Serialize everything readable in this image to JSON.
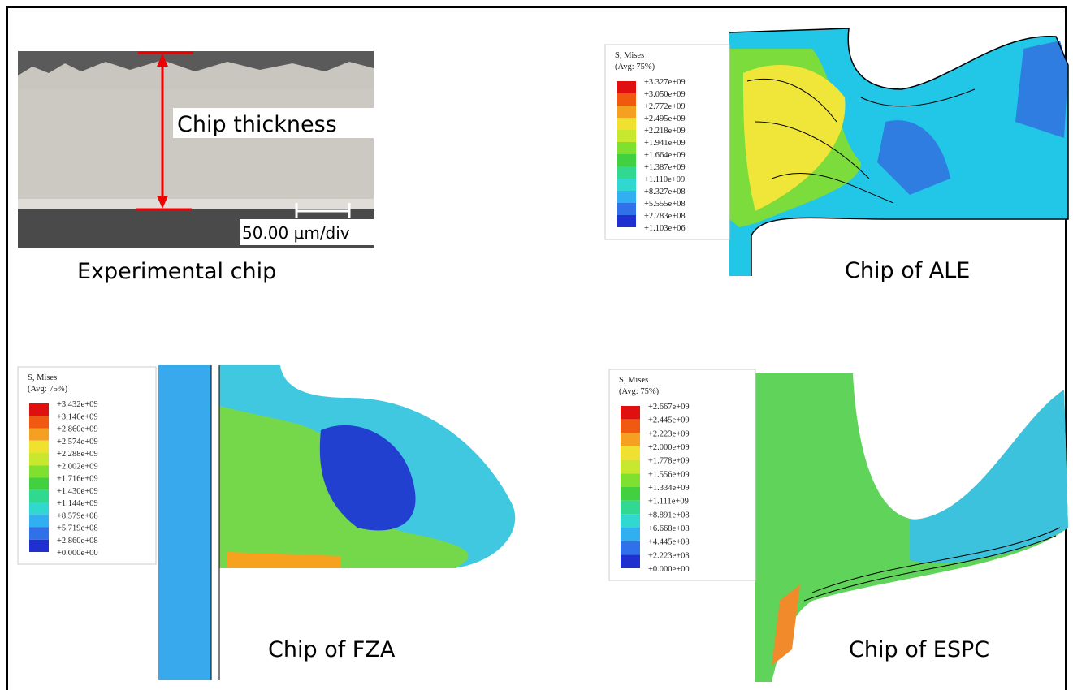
{
  "experimental": {
    "thickness_label": "Chip thickness",
    "scale_label": "50.00 μm/div",
    "caption": "Experimental chip"
  },
  "ale": {
    "caption": "Chip of ALE",
    "legend": {
      "title": "S, Mises",
      "subtitle": "(Avg: 75%)",
      "values": [
        "+3.327e+09",
        "+3.050e+09",
        "+2.772e+09",
        "+2.495e+09",
        "+2.218e+09",
        "+1.941e+09",
        "+1.664e+09",
        "+1.387e+09",
        "+1.110e+09",
        "+8.327e+08",
        "+5.555e+08",
        "+2.783e+08",
        "+1.103e+06"
      ]
    }
  },
  "fza": {
    "caption": "Chip of FZA",
    "legend": {
      "title": "S, Mises",
      "subtitle": "(Avg: 75%)",
      "values": [
        "+3.432e+09",
        "+3.146e+09",
        "+2.860e+09",
        "+2.574e+09",
        "+2.288e+09",
        "+2.002e+09",
        "+1.716e+09",
        "+1.430e+09",
        "+1.144e+09",
        "+8.579e+08",
        "+5.719e+08",
        "+2.860e+08",
        "+0.000e+00"
      ]
    }
  },
  "espc": {
    "caption": "Chip of ESPC",
    "legend": {
      "title": "S, Mises",
      "subtitle": "(Avg: 75%)",
      "values": [
        "+2.667e+09",
        "+2.445e+09",
        "+2.223e+09",
        "+2.000e+09",
        "+1.778e+09",
        "+1.556e+09",
        "+1.334e+09",
        "+1.111e+09",
        "+8.891e+08",
        "+6.668e+08",
        "+4.445e+08",
        "+2.223e+08",
        "+0.000e+00"
      ]
    }
  }
}
